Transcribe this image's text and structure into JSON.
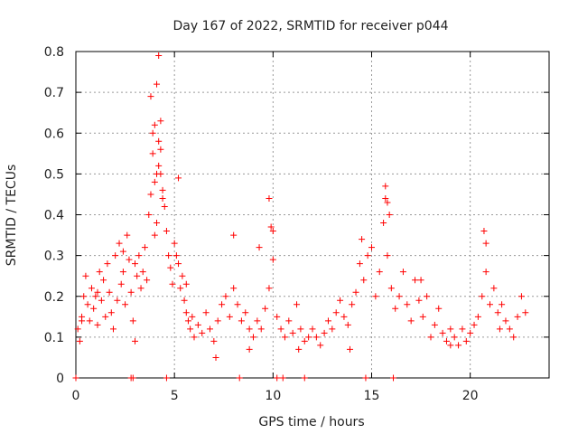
{
  "chart_data": {
    "type": "scatter",
    "title": "Day 167 of 2022, SRMTID for receiver p044",
    "xlabel": "GPS time / hours",
    "ylabel": "SRMTID / TECUs",
    "xlim": [
      0,
      24
    ],
    "ylim": [
      0,
      0.8
    ],
    "xticks": [
      0,
      5,
      10,
      15,
      20
    ],
    "yticks": [
      0,
      0.1,
      0.2,
      0.3,
      0.4,
      0.5,
      0.6,
      0.7,
      0.8
    ],
    "grid": true,
    "marker": "+",
    "color": "#ff0000",
    "series": [
      {
        "name": "SRMTID",
        "x": [
          0.1,
          0.2,
          0.3,
          0.4,
          0.5,
          0.6,
          0.7,
          0.8,
          0.9,
          1.0,
          1.1,
          1.2,
          1.3,
          1.4,
          1.5,
          1.6,
          1.7,
          1.8,
          1.9,
          2.0,
          2.1,
          2.2,
          2.3,
          2.4,
          2.5,
          2.6,
          2.7,
          2.8,
          2.9,
          3.0,
          3.1,
          3.2,
          3.3,
          3.4,
          3.5,
          3.6,
          3.7,
          3.8,
          3.9,
          4.0,
          4.1,
          4.2,
          4.3,
          4.4,
          4.5,
          4.6,
          4.7,
          4.8,
          4.9,
          5.0,
          5.1,
          5.2,
          5.3,
          5.4,
          5.5,
          5.6,
          5.7,
          5.8,
          5.9,
          6.0,
          6.2,
          6.4,
          6.6,
          6.8,
          7.0,
          7.2,
          7.4,
          7.6,
          7.8,
          8.0,
          8.2,
          8.4,
          8.6,
          8.8,
          9.0,
          9.2,
          9.4,
          9.6,
          9.8,
          10.0,
          10.2,
          10.4,
          10.6,
          10.8,
          11.0,
          11.2,
          11.4,
          11.6,
          11.8,
          12.0,
          12.2,
          12.4,
          12.6,
          12.8,
          13.0,
          13.2,
          13.4,
          13.6,
          13.8,
          14.0,
          14.2,
          14.4,
          14.6,
          14.8,
          15.0,
          15.2,
          15.4,
          15.6,
          15.7,
          15.8,
          16.0,
          16.2,
          16.4,
          16.6,
          16.8,
          17.0,
          17.2,
          17.4,
          17.6,
          17.8,
          18.0,
          18.2,
          18.4,
          18.6,
          18.8,
          19.0,
          19.2,
          19.4,
          19.6,
          19.8,
          20.0,
          20.2,
          20.4,
          20.6,
          20.8,
          21.0,
          21.2,
          21.4,
          21.6,
          21.8,
          22.0,
          22.2,
          22.4,
          22.6,
          22.8,
          3.9,
          4.0,
          4.1,
          4.2,
          4.3,
          4.2,
          4.3,
          4.1,
          3.8,
          4.4,
          4.0,
          5.2,
          9.8,
          9.9,
          10.0,
          15.7,
          15.8,
          15.9,
          20.7,
          20.8,
          14.5,
          8.0,
          9.3,
          0.0,
          2.8,
          2.9,
          4.6,
          8.3,
          10.2,
          10.5,
          11.6,
          14.7,
          16.1,
          0.3,
          1.1,
          2.4,
          3.0,
          5.6,
          7.1,
          8.8,
          11.3,
          13.9,
          17.5,
          19.0,
          21.5
        ],
        "y": [
          0.12,
          0.09,
          0.15,
          0.2,
          0.25,
          0.18,
          0.14,
          0.22,
          0.17,
          0.2,
          0.13,
          0.26,
          0.19,
          0.24,
          0.15,
          0.28,
          0.21,
          0.16,
          0.12,
          0.3,
          0.19,
          0.33,
          0.23,
          0.26,
          0.18,
          0.35,
          0.29,
          0.21,
          0.14,
          0.28,
          0.25,
          0.3,
          0.22,
          0.26,
          0.32,
          0.24,
          0.4,
          0.45,
          0.55,
          0.48,
          0.38,
          0.58,
          0.5,
          0.44,
          0.42,
          0.36,
          0.3,
          0.27,
          0.23,
          0.33,
          0.3,
          0.28,
          0.22,
          0.25,
          0.19,
          0.16,
          0.14,
          0.12,
          0.15,
          0.1,
          0.13,
          0.11,
          0.16,
          0.12,
          0.09,
          0.14,
          0.18,
          0.2,
          0.15,
          0.22,
          0.18,
          0.14,
          0.16,
          0.12,
          0.1,
          0.14,
          0.12,
          0.17,
          0.22,
          0.36,
          0.15,
          0.12,
          0.1,
          0.14,
          0.11,
          0.18,
          0.12,
          0.09,
          0.1,
          0.12,
          0.1,
          0.08,
          0.11,
          0.14,
          0.12,
          0.16,
          0.19,
          0.15,
          0.13,
          0.18,
          0.21,
          0.28,
          0.24,
          0.3,
          0.32,
          0.2,
          0.26,
          0.38,
          0.44,
          0.3,
          0.22,
          0.17,
          0.2,
          0.26,
          0.18,
          0.14,
          0.24,
          0.19,
          0.15,
          0.2,
          0.1,
          0.13,
          0.17,
          0.11,
          0.09,
          0.12,
          0.1,
          0.08,
          0.12,
          0.09,
          0.11,
          0.13,
          0.15,
          0.2,
          0.26,
          0.18,
          0.22,
          0.16,
          0.18,
          0.14,
          0.12,
          0.1,
          0.15,
          0.2,
          0.16,
          0.6,
          0.62,
          0.72,
          0.79,
          0.63,
          0.52,
          0.56,
          0.5,
          0.69,
          0.46,
          0.35,
          0.49,
          0.44,
          0.37,
          0.29,
          0.47,
          0.43,
          0.4,
          0.36,
          0.33,
          0.34,
          0.35,
          0.32,
          0.0,
          0.0,
          0.0,
          0.0,
          0.0,
          0.0,
          0.0,
          0.0,
          0.0,
          0.0,
          0.14,
          0.21,
          0.31,
          0.09,
          0.23,
          0.05,
          0.07,
          0.07,
          0.07,
          0.24,
          0.08,
          0.12
        ]
      }
    ]
  }
}
